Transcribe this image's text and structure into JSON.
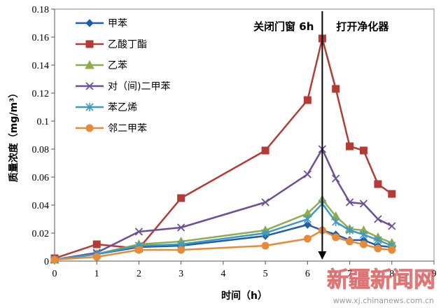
{
  "chart_data": {
    "type": "line",
    "xlabel": "时间（h）",
    "ylabel": "质量浓度（mg/m³）",
    "xlim": [
      0,
      9
    ],
    "ylim": [
      0,
      0.18
    ],
    "x_ticks": [
      "0",
      "1",
      "2",
      "3",
      "4",
      "5",
      "6",
      "7",
      "8",
      "9"
    ],
    "y_ticks": [
      "0",
      "0.02",
      "0.04",
      "0.06",
      "0.08",
      "0.1",
      "0.12",
      "0.14",
      "0.16",
      "0.18"
    ],
    "grid": false,
    "legend_position": "top-left",
    "annotations": [
      {
        "text": "关闭门窗 6h",
        "side": "left-of-arrow"
      },
      {
        "text": "打开净化器",
        "side": "right-of-arrow"
      }
    ],
    "arrow_x": 6.35,
    "series": [
      {
        "name": "甲苯",
        "color": "#1f5fa8",
        "marker": "diamond",
        "points": [
          [
            0,
            0.001
          ],
          [
            1,
            0.005
          ],
          [
            2,
            0.01
          ],
          [
            3,
            0.011
          ],
          [
            5,
            0.018
          ],
          [
            6,
            0.026
          ],
          [
            6.35,
            0.022
          ],
          [
            6.67,
            0.019
          ],
          [
            7,
            0.015
          ],
          [
            7.33,
            0.015
          ],
          [
            7.67,
            0.011
          ],
          [
            8,
            0.01
          ]
        ]
      },
      {
        "name": "乙酸丁酯",
        "color": "#b33b36",
        "marker": "square",
        "points": [
          [
            0,
            0.002
          ],
          [
            1,
            0.012
          ],
          [
            2,
            0.009
          ],
          [
            3,
            0.045
          ],
          [
            5,
            0.079
          ],
          [
            6,
            0.115
          ],
          [
            6.35,
            0.159
          ],
          [
            6.67,
            0.123
          ],
          [
            7,
            0.082
          ],
          [
            7.33,
            0.079
          ],
          [
            7.67,
            0.055
          ],
          [
            8,
            0.048
          ]
        ]
      },
      {
        "name": "乙苯",
        "color": "#8fac4f",
        "marker": "triangle",
        "points": [
          [
            0,
            0.001
          ],
          [
            1,
            0.005
          ],
          [
            2,
            0.012
          ],
          [
            3,
            0.014
          ],
          [
            5,
            0.022
          ],
          [
            6,
            0.034
          ],
          [
            6.35,
            0.044
          ],
          [
            6.67,
            0.032
          ],
          [
            7,
            0.023
          ],
          [
            7.33,
            0.022
          ],
          [
            7.67,
            0.017
          ],
          [
            8,
            0.013
          ]
        ]
      },
      {
        "name": "对（间)二甲苯",
        "color": "#6f4f93",
        "marker": "x",
        "points": [
          [
            0,
            0.001
          ],
          [
            1,
            0.006
          ],
          [
            2,
            0.021
          ],
          [
            3,
            0.024
          ],
          [
            5,
            0.042
          ],
          [
            6,
            0.062
          ],
          [
            6.35,
            0.08
          ],
          [
            6.67,
            0.059
          ],
          [
            7,
            0.042
          ],
          [
            7.33,
            0.041
          ],
          [
            7.67,
            0.03
          ],
          [
            8,
            0.025
          ]
        ]
      },
      {
        "name": "苯乙烯",
        "color": "#3f9ac2",
        "marker": "asterisk",
        "points": [
          [
            0,
            0.001
          ],
          [
            1,
            0.005
          ],
          [
            2,
            0.011
          ],
          [
            3,
            0.012
          ],
          [
            5,
            0.02
          ],
          [
            6,
            0.03
          ],
          [
            6.35,
            0.041
          ],
          [
            6.67,
            0.028
          ],
          [
            7,
            0.022
          ],
          [
            7.33,
            0.019
          ],
          [
            7.67,
            0.015
          ],
          [
            8,
            0.011
          ]
        ]
      },
      {
        "name": "邻二甲苯",
        "color": "#e58b3a",
        "marker": "circle",
        "points": [
          [
            0,
            0.001
          ],
          [
            1,
            0.003
          ],
          [
            2,
            0.008
          ],
          [
            3,
            0.008
          ],
          [
            5,
            0.011
          ],
          [
            6,
            0.016
          ],
          [
            6.35,
            0.022
          ],
          [
            6.67,
            0.017
          ],
          [
            7,
            0.014
          ],
          [
            7.33,
            0.012
          ],
          [
            7.67,
            0.009
          ],
          [
            8,
            0.008
          ]
        ]
      }
    ]
  },
  "watermark": {
    "text": "新疆新闻网",
    "url": "www.xj.chinanews.com.cn"
  }
}
